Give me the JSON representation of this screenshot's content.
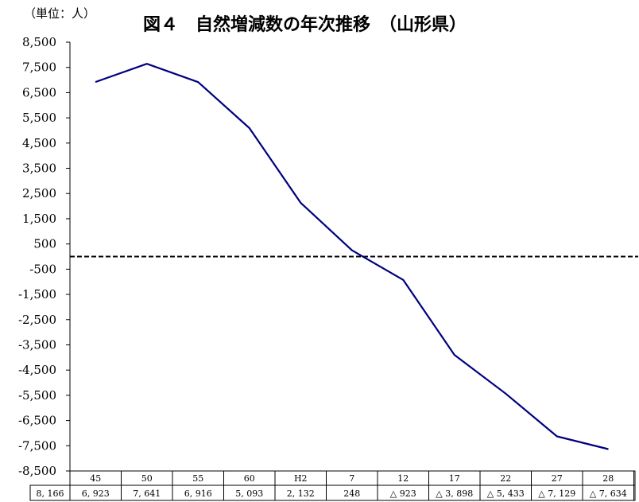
{
  "chart_data": {
    "type": "line",
    "title": "図４　自然増減数の年次推移　（山形県）",
    "unit_label": "（単位：人）",
    "categories": [
      "45",
      "50",
      "55",
      "60",
      "H2",
      "7",
      "12",
      "17",
      "22",
      "27",
      "28"
    ],
    "values": [
      6923,
      7641,
      6916,
      5093,
      2132,
      248,
      -923,
      -3898,
      -5433,
      -7129,
      -7634
    ],
    "value_labels": [
      "6, 923",
      "7, 641",
      "6, 916",
      "5, 093",
      "2, 132",
      "248",
      "△ 923",
      "△ 3, 898",
      "△ 5, 433",
      "△ 7, 129",
      "△ 7, 634"
    ],
    "first_cell_label": "8, 166",
    "yticks": [
      "8,500",
      "7,500",
      "6,500",
      "5,500",
      "4,500",
      "3,500",
      "2,500",
      "1,500",
      "500",
      "-500",
      "-1,500",
      "-2,500",
      "-3,500",
      "-4,500",
      "-5,500",
      "-6,500",
      "-7,500",
      "-8,500"
    ],
    "ylim": [
      -8500,
      8500
    ],
    "reference_line": 0,
    "grid": false,
    "line_color": "#000080"
  }
}
